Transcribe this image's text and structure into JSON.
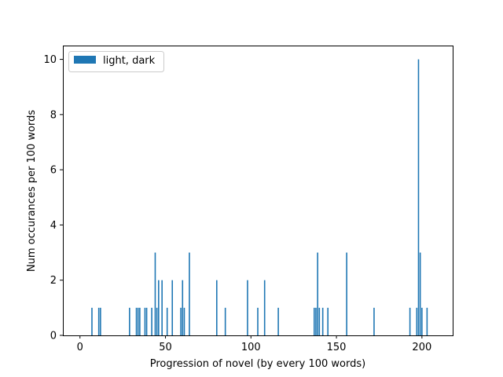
{
  "chart_data": {
    "type": "bar",
    "title": "",
    "xlabel": "Progression of novel (by every 100 words)",
    "ylabel": "Num occurances per 100 words",
    "xlim": [
      -10,
      218
    ],
    "ylim": [
      0,
      10.5
    ],
    "xticks": [
      0,
      50,
      100,
      150,
      200
    ],
    "yticks": [
      0,
      2,
      4,
      6,
      8,
      10
    ],
    "grid": false,
    "legend": {
      "position": "top-left",
      "entries": [
        "light, dark"
      ]
    },
    "color": "#1f77b4",
    "series": [
      {
        "name": "light, dark",
        "x": [
          7,
          11,
          12,
          29,
          33,
          34,
          35,
          38,
          39,
          42,
          44,
          45,
          46,
          48,
          51,
          54,
          59,
          60,
          61,
          64,
          80,
          85,
          98,
          104,
          108,
          116,
          137,
          138,
          139,
          140,
          142,
          145,
          156,
          172,
          193,
          197,
          198,
          199,
          200,
          203
        ],
        "values": [
          1,
          1,
          1,
          1,
          1,
          1,
          1,
          1,
          1,
          1,
          3,
          1,
          2,
          2,
          1,
          2,
          1,
          2,
          1,
          3,
          2,
          1,
          2,
          1,
          2,
          1,
          1,
          1,
          3,
          1,
          1,
          1,
          3,
          1,
          1,
          1,
          10,
          3,
          1,
          1
        ]
      }
    ]
  }
}
